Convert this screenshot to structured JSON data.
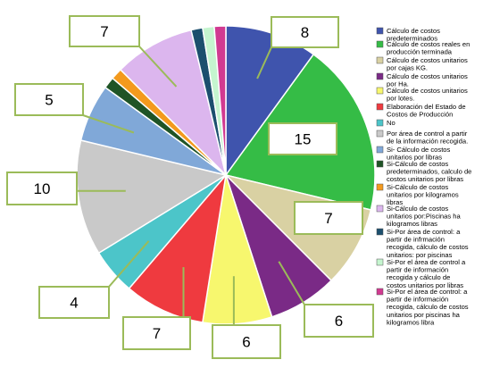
{
  "chart_data": {
    "type": "pie",
    "title": "",
    "legend_position": "right",
    "slices": [
      {
        "label": "Cálculo de costos predeterminados",
        "value": 8,
        "color": "#3f54ad"
      },
      {
        "label": "Cálculo de costos reales en producción terminada",
        "value": 15,
        "color": "#35bc46"
      },
      {
        "label": "Cálculo de costos unitarios por cajas KG.",
        "value": 7,
        "color": "#d9d1a3"
      },
      {
        "label": "Cálculo de costos unitarios por Ha.",
        "value": 6,
        "color": "#7a2a86"
      },
      {
        "label": "Cálculo de costos unitarios por lotes.",
        "value": 6,
        "color": "#f7f76e"
      },
      {
        "label": "Elaboración del Estado de Costos de Producción",
        "value": 7,
        "color": "#ef3a3f"
      },
      {
        "label": "No",
        "value": 4,
        "color": "#4cc5c9"
      },
      {
        "label": "Por área de control a partir de la información recogida.",
        "value": 10,
        "color": "#c9c9c9"
      },
      {
        "label": "Si- Cálculo de costos unitarios por libras",
        "value": 5,
        "color": "#80a8d8"
      },
      {
        "label": "Si-Cálculo de costos predeterminados, calculo de costos unitarios por libras",
        "value": 1,
        "color": "#1f5426"
      },
      {
        "label": "Si-Cálculo de costos unitarios por kilogramos libras",
        "value": 1,
        "color": "#f39a1e"
      },
      {
        "label": "Si-Cálculo de costos unitarios por:Piscinas ha kilogramos libras",
        "value": 7,
        "color": "#dcb6ee"
      },
      {
        "label": "Si-Por área de control: a partir de infrmación recogida, cálculo de costos unitarios: por piscinas",
        "value": 1,
        "color": "#1c4f6e"
      },
      {
        "label": "Si-Por el área de control a partir de información recogida y cálculo de costos unitarios por libras",
        "value": 1,
        "color": "#c5f5cf"
      },
      {
        "label": "Si-Por el área de control: a partir de información recogida, cálculo de costos unitarios por piscinas ha kilogramos libra",
        "value": 1,
        "color": "#d13a91"
      }
    ],
    "data_labels": [
      {
        "text": "8",
        "slice": 0
      },
      {
        "text": "15",
        "slice": 1
      },
      {
        "text": "7",
        "slice": 2
      },
      {
        "text": "6",
        "slice": 3
      },
      {
        "text": "6",
        "slice": 4
      },
      {
        "text": "7",
        "slice": 5
      },
      {
        "text": "4",
        "slice": 6
      },
      {
        "text": "10",
        "slice": 7
      },
      {
        "text": "5",
        "slice": 8
      },
      {
        "text": "7",
        "slice": 11
      }
    ],
    "legend_items": [
      {
        "lines": [
          "Cálculo de costos",
          "predeterminados"
        ],
        "slice": 0
      },
      {
        "lines": [
          "Cálculo de costos reales en",
          "producción terminada"
        ],
        "slice": 1
      },
      {
        "lines": [
          "Cálculo de costos unitarios",
          "por cajas KG."
        ],
        "slice": 2
      },
      {
        "lines": [
          "Cálculo de costos unitarios",
          "por Ha."
        ],
        "slice": 3
      },
      {
        "lines": [
          "Cálculo de costos unitarios",
          "por lotes."
        ],
        "slice": 4
      },
      {
        "lines": [
          "Elaboración del Estado de",
          "Costos de Producción"
        ],
        "slice": 5
      },
      {
        "lines": [
          "No"
        ],
        "slice": 6
      },
      {
        "lines": [
          "Por área de control a partir",
          "de la información recogida."
        ],
        "slice": 7
      },
      {
        "lines": [
          "Si- Cálculo de costos",
          "unitarios por libras"
        ],
        "slice": 8
      },
      {
        "lines": [
          "Si-Cálculo de costos",
          "predeterminados, calculo de",
          "costos unitarios por libras"
        ],
        "slice": 9
      },
      {
        "lines": [
          "Si-Cálculo de costos",
          "unitarios por kilogramos",
          "libras"
        ],
        "slice": 10
      },
      {
        "lines": [
          "Si-Cálculo de costos",
          "unitarios por:Piscinas ha",
          "kilogramos libras"
        ],
        "slice": 11
      },
      {
        "lines": [
          "Si-Por área de control: a",
          "partir de infrmación",
          "recogida, cálculo de costos",
          "unitarios: por piscinas"
        ],
        "slice": 12
      },
      {
        "lines": [
          "Si-Por el área de control a",
          "partir de información",
          "recogida y cálculo de",
          "costos unitarios por libras"
        ],
        "slice": 13
      },
      {
        "lines": [
          "Si-Por el área de control: a",
          "partir de información",
          "recogida, cálculo de costos",
          "unitarios por piscinas ha",
          "kilogramos libra"
        ],
        "slice": 14
      }
    ]
  }
}
